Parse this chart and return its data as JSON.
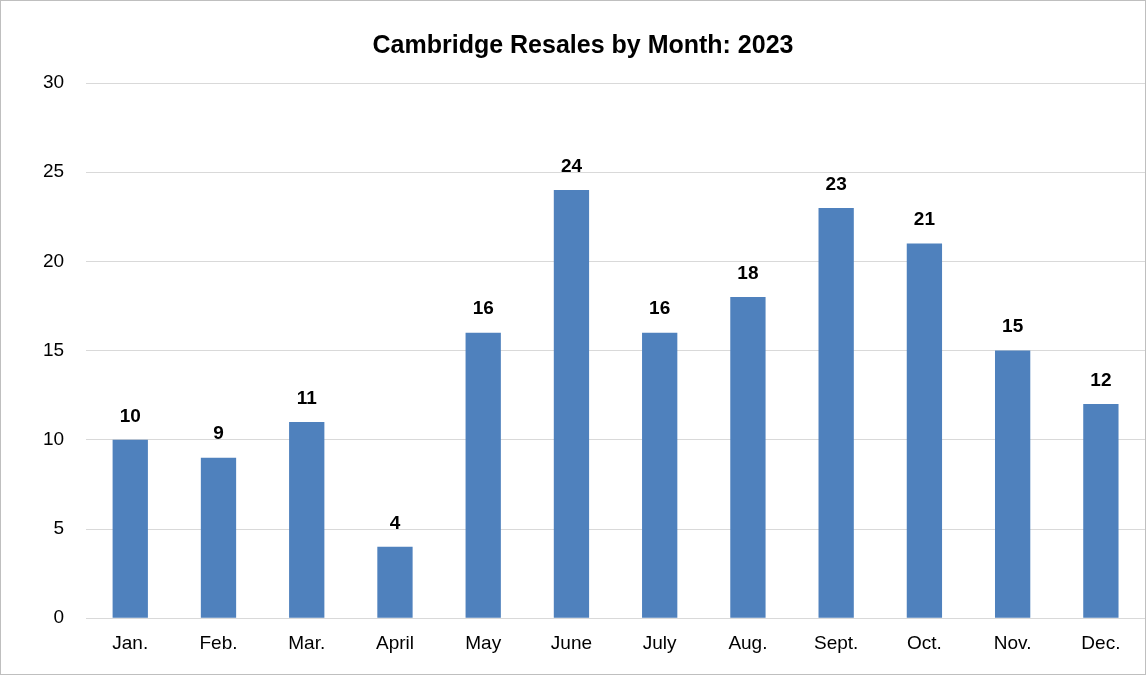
{
  "chart_data": {
    "type": "bar",
    "title": "Cambridge Resales by Month: 2023",
    "categories": [
      "Jan.",
      "Feb.",
      "Mar.",
      "April",
      "May",
      "June",
      "July",
      "Aug.",
      "Sept.",
      "Oct.",
      "Nov.",
      "Dec."
    ],
    "values": [
      10,
      9,
      11,
      4,
      16,
      24,
      16,
      18,
      23,
      21,
      15,
      12
    ],
    "color": "#4f81bd",
    "ylim": [
      0,
      30
    ],
    "yticks": [
      0,
      5,
      10,
      15,
      20,
      25,
      30
    ],
    "grid": "y",
    "data_labels": true,
    "legend": false
  }
}
